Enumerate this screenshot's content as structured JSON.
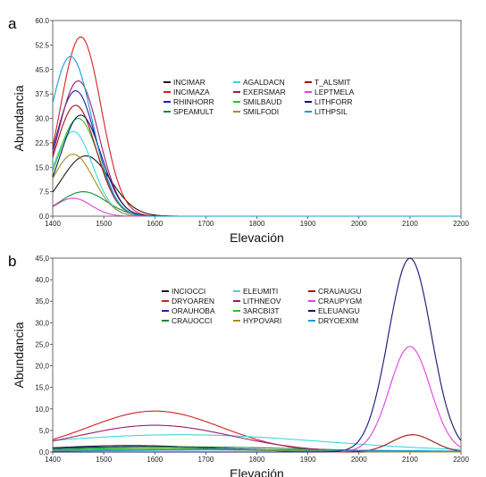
{
  "chart_data": [
    {
      "type": "line",
      "panel_label": "a",
      "xlabel": "Elevación",
      "ylabel": "Abundancia",
      "xlim": [
        1400,
        2200
      ],
      "ylim": [
        0,
        60
      ],
      "x_ticks": [
        1400,
        1500,
        1600,
        1700,
        1800,
        1900,
        2000,
        2100,
        2200
      ],
      "y_ticks": [
        "0.0",
        "7.5",
        "15.0",
        "22.5",
        "30.0",
        "37.5",
        "45.0",
        "52.5",
        "60.0"
      ],
      "grid": false,
      "legend_position": "center",
      "series": [
        {
          "name": "INCIMAR",
          "color": "#1a1a1a",
          "peak_x": 1465,
          "peak_y": 18.5,
          "sd": 48
        },
        {
          "name": "INCIMAZA",
          "color": "#d62020",
          "peak_x": 1455,
          "peak_y": 55.0,
          "sd": 40
        },
        {
          "name": "RHINHORR",
          "color": "#1f1fb8",
          "peak_x": 1445,
          "peak_y": 38.5,
          "sd": 40
        },
        {
          "name": "SPEAMULT",
          "color": "#1a8a3a",
          "peak_x": 1460,
          "peak_y": 7.5,
          "sd": 45
        },
        {
          "name": "AGALDACN",
          "color": "#3ed6e0",
          "peak_x": 1440,
          "peak_y": 26.0,
          "sd": 38
        },
        {
          "name": "EXERSMAR",
          "color": "#9a1f6a",
          "peak_x": 1450,
          "peak_y": 41.5,
          "sd": 40
        },
        {
          "name": "SMILBAUD",
          "color": "#22c922",
          "peak_x": 1450,
          "peak_y": 30.0,
          "sd": 40
        },
        {
          "name": "SMILFODI",
          "color": "#a09020",
          "peak_x": 1440,
          "peak_y": 19.0,
          "sd": 40
        },
        {
          "name": "T_ALSMIT",
          "color": "#a01414",
          "peak_x": 1445,
          "peak_y": 34.0,
          "sd": 40
        },
        {
          "name": "LEPTMELA",
          "color": "#e040e0",
          "peak_x": 1440,
          "peak_y": 5.5,
          "sd": 35
        },
        {
          "name": "LITHFORR",
          "color": "#14146e",
          "peak_x": 1455,
          "peak_y": 31.0,
          "sd": 40
        },
        {
          "name": "LITHPSIL",
          "color": "#1b9ad6",
          "peak_x": 1435,
          "peak_y": 49.0,
          "sd": 42
        }
      ]
    },
    {
      "type": "line",
      "panel_label": "b",
      "xlabel": "Elevación",
      "ylabel": "Abundancia",
      "xlim": [
        1400,
        2200
      ],
      "ylim": [
        0,
        45
      ],
      "x_ticks": [
        1400,
        1500,
        1600,
        1700,
        1800,
        1900,
        2000,
        2100,
        2200
      ],
      "y_ticks": [
        "0,0",
        "5,0",
        "10,0",
        "15,0",
        "20,0",
        "25,0",
        "30,0",
        "35,0",
        "40,0",
        "45,0"
      ],
      "grid": false,
      "legend_position": "center",
      "series": [
        {
          "name": "INCIOCCI",
          "color": "#1a1a1a",
          "peak_x": 1550,
          "peak_y": 1.5,
          "sd": 160
        },
        {
          "name": "DRYOAREN",
          "color": "#d62020",
          "peak_x": 1600,
          "peak_y": 9.5,
          "sd": 130
        },
        {
          "name": "ORAUHOBA",
          "color": "#1f1fb8",
          "peak_x": 1560,
          "peak_y": 1.2,
          "sd": 200
        },
        {
          "name": "CRAUOCCI",
          "color": "#1a8a3a",
          "peak_x": 1650,
          "peak_y": 1.2,
          "sd": 240
        },
        {
          "name": "ELEUMITI",
          "color": "#3ed6e0",
          "peak_x": 1650,
          "peak_y": 4.0,
          "sd": 280
        },
        {
          "name": "LITHNEOV",
          "color": "#9a1f6a",
          "peak_x": 1600,
          "peak_y": 6.2,
          "sd": 150
        },
        {
          "name": "3ARCBI3T",
          "color": "#22c922",
          "peak_x": 1600,
          "peak_y": 0.8,
          "sd": 200
        },
        {
          "name": "HYPOVARI",
          "color": "#a09020",
          "peak_x": 1600,
          "peak_y": 0.6,
          "sd": 200
        },
        {
          "name": "CRAUAUGU",
          "color": "#a01414",
          "peak_x": 2105,
          "peak_y": 4.0,
          "sd": 40
        },
        {
          "name": "CRAUPYGM",
          "color": "#e040e0",
          "peak_x": 2100,
          "peak_y": 24.5,
          "sd": 40
        },
        {
          "name": "ELEUANGU",
          "color": "#14146e",
          "peak_x": 2100,
          "peak_y": 45.0,
          "sd": 42
        },
        {
          "name": "DRYOEXIM",
          "color": "#1b9ad6",
          "peak_x": 1800,
          "peak_y": 0.5,
          "sd": 300
        }
      ]
    }
  ]
}
